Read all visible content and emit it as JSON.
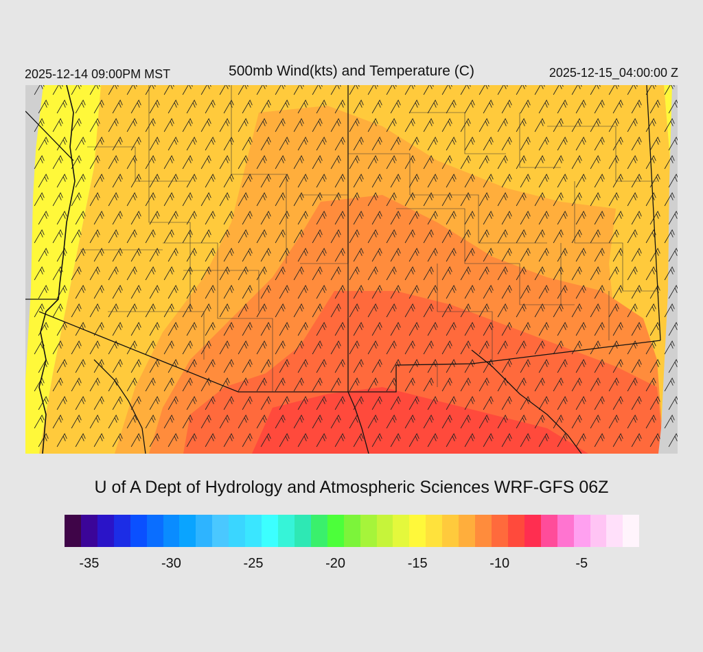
{
  "header": {
    "local_time": "2025-12-14 09:00PM MST",
    "title": "500mb Wind(kts) and Temperature (C)",
    "valid_time": "2025-12-15_04:00:00 Z"
  },
  "credit": "U of A Dept of Hydrology and Atmospheric Sciences WRF-GFS 06Z",
  "colorbar": {
    "colors": [
      "#3f0548",
      "#3b0598",
      "#2a14c8",
      "#1c2de6",
      "#0a50ff",
      "#0a6eff",
      "#0a8cff",
      "#0aa4ff",
      "#2eb4ff",
      "#4ac8ff",
      "#3ad6ff",
      "#3ae6ff",
      "#3cffff",
      "#36f4d8",
      "#2ee8b4",
      "#3af06c",
      "#4cff3a",
      "#7cf43a",
      "#a6f43a",
      "#c6f43a",
      "#e4f83c",
      "#fff83a",
      "#ffe23c",
      "#ffca3c",
      "#ffae3c",
      "#ff8c3c",
      "#ff6a3c",
      "#ff4a3c",
      "#ff2e50",
      "#ff4c9a",
      "#ff74d0",
      "#ffa0f0",
      "#ffc4f4",
      "#ffe0fa",
      "#fff4fc"
    ],
    "tick_labels": [
      "-35",
      "-30",
      "-25",
      "-20",
      "-15",
      "-10",
      "-5"
    ],
    "tick_values": [
      -35,
      -30,
      -25,
      -20,
      -15,
      -10,
      -5
    ],
    "min": -36.5,
    "max": -1.5
  },
  "map": {
    "temperature_colors": {
      "coldest_west": "#fff83a",
      "cold": "#ffe23c",
      "mid": "#ffca3c",
      "warm": "#ffae3c",
      "warmer": "#ff8c3c",
      "warmest": "#ff6a3c",
      "hottest": "#ff4a3c",
      "no_data": "#d0d0d0"
    },
    "wind_barb_color": "#222222",
    "border_color": "#111111"
  }
}
